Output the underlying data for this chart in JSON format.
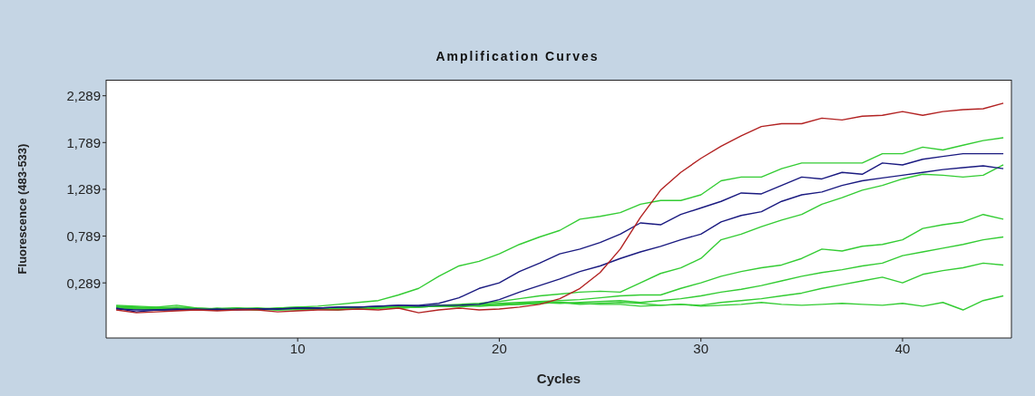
{
  "chart_data": {
    "type": "line",
    "title": "Amplification Curves",
    "xlabel": "Cycles",
    "ylabel": "Fluorescence (483-533)",
    "x": [
      1,
      2,
      3,
      4,
      5,
      6,
      7,
      8,
      9,
      10,
      11,
      12,
      13,
      14,
      15,
      16,
      17,
      18,
      19,
      20,
      21,
      22,
      23,
      24,
      25,
      26,
      27,
      28,
      29,
      30,
      31,
      32,
      33,
      34,
      35,
      36,
      37,
      38,
      39,
      40,
      41,
      42,
      43,
      44,
      45
    ],
    "xlim": [
      0.5,
      45.4
    ],
    "xticks": [
      10,
      20,
      30,
      40
    ],
    "ylim": [
      -0.3,
      2.46
    ],
    "yticks": [
      {
        "value": 0.289,
        "label": "0,289"
      },
      {
        "value": 0.789,
        "label": "0,789"
      },
      {
        "value": 1.289,
        "label": "1,289"
      },
      {
        "value": 1.789,
        "label": "1,789"
      },
      {
        "value": 2.289,
        "label": "2,289"
      }
    ],
    "grid": false,
    "legend": false,
    "marker": "none",
    "line_style": "solid",
    "series": [
      {
        "color": "#33cc33",
        "values": [
          0.05,
          0.04,
          0.03,
          0.05,
          0.02,
          0.01,
          0.02,
          0.0,
          0.02,
          0.03,
          0.04,
          0.06,
          0.08,
          0.1,
          0.16,
          0.23,
          0.36,
          0.47,
          0.52,
          0.6,
          0.7,
          0.78,
          0.85,
          0.97,
          1.0,
          1.04,
          1.13,
          1.17,
          1.17,
          1.23,
          1.38,
          1.42,
          1.42,
          1.51,
          1.57,
          1.57,
          1.57,
          1.57,
          1.67,
          1.67,
          1.74,
          1.71,
          1.76,
          1.81,
          1.84
        ]
      },
      {
        "color": "#33cc33",
        "values": [
          0.03,
          0.02,
          0.02,
          0.01,
          0.0,
          0.01,
          0.02,
          0.01,
          0.0,
          0.01,
          0.02,
          0.02,
          0.01,
          0.02,
          0.03,
          0.04,
          0.05,
          0.06,
          0.07,
          0.09,
          0.12,
          0.15,
          0.17,
          0.19,
          0.2,
          0.19,
          0.29,
          0.39,
          0.45,
          0.55,
          0.75,
          0.81,
          0.89,
          0.96,
          1.02,
          1.13,
          1.2,
          1.28,
          1.33,
          1.4,
          1.45,
          1.44,
          1.42,
          1.44,
          1.55
        ]
      },
      {
        "color": "#33cc33",
        "values": [
          0.04,
          0.03,
          0.01,
          0.02,
          0.01,
          0.0,
          0.01,
          0.02,
          0.01,
          0.0,
          0.01,
          0.02,
          0.03,
          0.02,
          0.03,
          0.03,
          0.04,
          0.05,
          0.06,
          0.07,
          0.08,
          0.09,
          0.1,
          0.11,
          0.13,
          0.15,
          0.16,
          0.16,
          0.23,
          0.29,
          0.36,
          0.41,
          0.45,
          0.48,
          0.55,
          0.65,
          0.63,
          0.68,
          0.7,
          0.75,
          0.87,
          0.91,
          0.94,
          1.02,
          0.97
        ]
      },
      {
        "color": "#33cc33",
        "values": [
          0.02,
          0.01,
          0.0,
          0.01,
          0.0,
          0.02,
          0.01,
          0.0,
          0.01,
          0.02,
          0.01,
          0.0,
          0.02,
          0.03,
          0.02,
          0.03,
          0.04,
          0.03,
          0.05,
          0.06,
          0.07,
          0.08,
          0.07,
          0.08,
          0.09,
          0.1,
          0.08,
          0.1,
          0.12,
          0.15,
          0.19,
          0.22,
          0.26,
          0.31,
          0.36,
          0.4,
          0.43,
          0.47,
          0.5,
          0.58,
          0.62,
          0.66,
          0.7,
          0.75,
          0.78
        ]
      },
      {
        "color": "#33cc33",
        "values": [
          0.03,
          0.02,
          0.03,
          0.02,
          0.01,
          0.0,
          0.01,
          0.02,
          0.0,
          0.01,
          0.02,
          0.01,
          0.02,
          0.03,
          0.02,
          0.03,
          0.04,
          0.05,
          0.04,
          0.05,
          0.06,
          0.07,
          0.08,
          0.07,
          0.06,
          0.06,
          0.04,
          0.05,
          0.06,
          0.05,
          0.08,
          0.1,
          0.12,
          0.15,
          0.18,
          0.23,
          0.27,
          0.31,
          0.35,
          0.29,
          0.38,
          0.42,
          0.45,
          0.5,
          0.48
        ]
      },
      {
        "color": "#33cc33",
        "values": [
          0.04,
          0.03,
          0.02,
          0.03,
          0.02,
          0.01,
          0.02,
          0.01,
          0.02,
          0.03,
          0.02,
          0.01,
          0.02,
          0.03,
          0.04,
          0.03,
          0.04,
          0.05,
          0.04,
          0.05,
          0.06,
          0.07,
          0.08,
          0.06,
          0.07,
          0.08,
          0.07,
          0.05,
          0.06,
          0.04,
          0.05,
          0.06,
          0.08,
          0.06,
          0.05,
          0.06,
          0.07,
          0.06,
          0.05,
          0.07,
          0.04,
          0.08,
          0.0,
          0.1,
          0.15
        ]
      },
      {
        "color": "#1a1a80",
        "values": [
          0.02,
          -0.02,
          0.0,
          0.01,
          0.0,
          0.01,
          0.0,
          0.01,
          0.01,
          0.02,
          0.02,
          0.03,
          0.03,
          0.04,
          0.05,
          0.05,
          0.07,
          0.13,
          0.23,
          0.29,
          0.41,
          0.5,
          0.6,
          0.65,
          0.72,
          0.81,
          0.93,
          0.91,
          1.02,
          1.09,
          1.16,
          1.25,
          1.24,
          1.33,
          1.42,
          1.4,
          1.47,
          1.45,
          1.57,
          1.55,
          1.61,
          1.64,
          1.67,
          1.67,
          1.67
        ]
      },
      {
        "color": "#1a1a80",
        "values": [
          0.01,
          0.0,
          0.0,
          0.0,
          0.01,
          0.0,
          0.01,
          0.01,
          0.01,
          0.02,
          0.02,
          0.03,
          0.03,
          0.04,
          0.05,
          0.04,
          0.05,
          0.05,
          0.06,
          0.11,
          0.19,
          0.26,
          0.33,
          0.41,
          0.47,
          0.55,
          0.62,
          0.68,
          0.75,
          0.81,
          0.94,
          1.01,
          1.05,
          1.16,
          1.23,
          1.26,
          1.33,
          1.38,
          1.41,
          1.44,
          1.47,
          1.5,
          1.52,
          1.54,
          1.51
        ]
      },
      {
        "color": "#b22222",
        "values": [
          0.0,
          -0.03,
          -0.02,
          -0.01,
          0.0,
          -0.01,
          0.0,
          0.0,
          -0.02,
          -0.01,
          0.0,
          0.0,
          0.01,
          0.0,
          0.02,
          -0.03,
          0.0,
          0.02,
          0.0,
          0.01,
          0.03,
          0.06,
          0.12,
          0.23,
          0.4,
          0.65,
          0.99,
          1.28,
          1.47,
          1.62,
          1.75,
          1.86,
          1.96,
          1.99,
          1.99,
          2.05,
          2.03,
          2.07,
          2.08,
          2.12,
          2.08,
          2.12,
          2.14,
          2.15,
          2.21
        ]
      }
    ]
  }
}
